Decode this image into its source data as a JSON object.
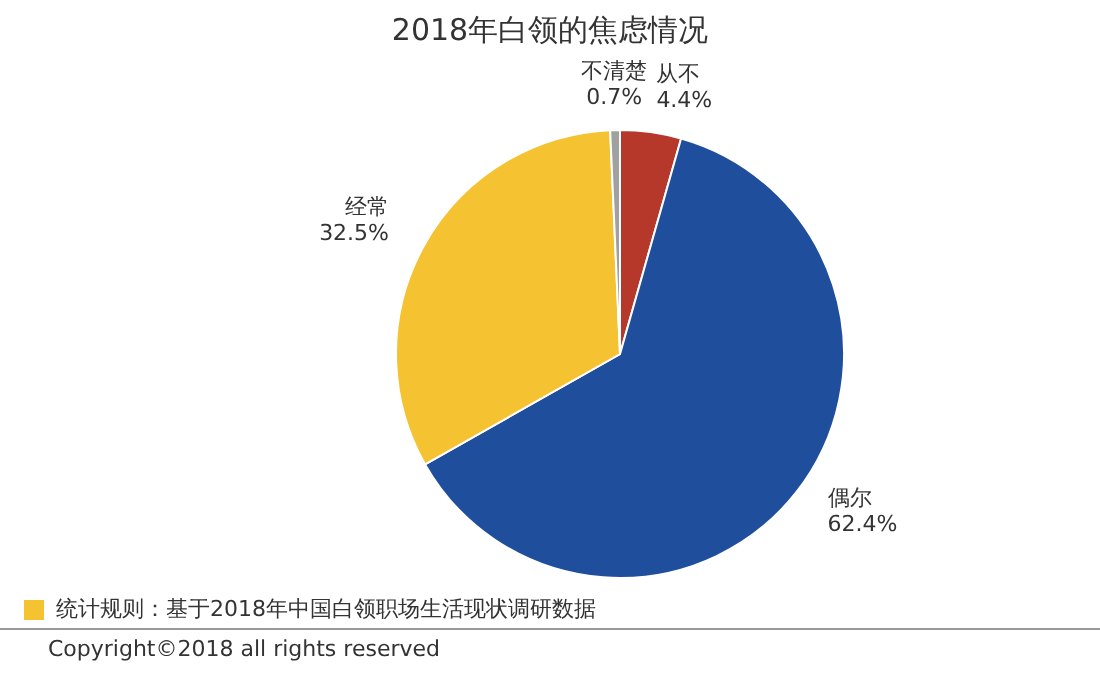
{
  "chart_data": {
    "type": "pie",
    "title": "2018年白领的焦虑情况",
    "categories": [
      "从不",
      "偶尔",
      "经常",
      "不清楚"
    ],
    "values": [
      4.4,
      62.4,
      32.5,
      0.7
    ],
    "colors": [
      "#b5382a",
      "#1f4e9c",
      "#f5c231",
      "#a0a0a0"
    ],
    "value_labels": [
      "4.4%",
      "62.4%",
      "32.5%",
      "0.7%"
    ],
    "annotations": [
      "统计规则：基于2018年中国白领职场生活现状调研数据",
      "Copyright©2018 all rights reserved"
    ]
  }
}
